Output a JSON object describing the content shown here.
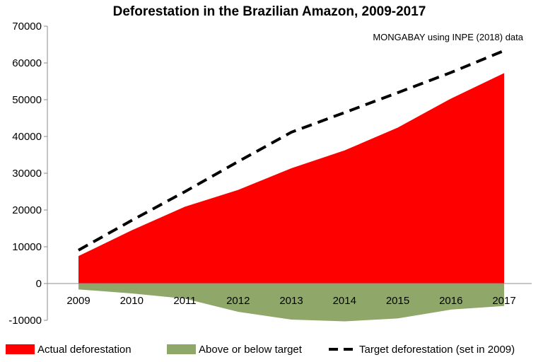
{
  "chart_data": {
    "type": "area",
    "title": "Deforestation in the Brazilian Amazon, 2009-2017",
    "source": "MONGABAY using INPE (2018) data",
    "categories": [
      "2009",
      "2010",
      "2011",
      "2012",
      "2013",
      "2014",
      "2015",
      "2016",
      "2017"
    ],
    "series": [
      {
        "name": "Actual deforestation",
        "kind": "area",
        "color": "#ff0000",
        "values": [
          7464,
          14464,
          20882,
          25453,
          31344,
          36192,
          42399,
          50292,
          57239
        ]
      },
      {
        "name": "Above or below target",
        "kind": "area",
        "color": "#8fa86a",
        "values": [
          -1600,
          -2700,
          -4100,
          -7700,
          -9800,
          -10300,
          -9500,
          -7100,
          -6100
        ]
      },
      {
        "name": "Target deforestation (set in 2009)",
        "kind": "dashed-line",
        "color": "#000000",
        "values": [
          9064,
          17164,
          24982,
          33153,
          41144,
          46492,
          51899,
          57392,
          63339
        ]
      }
    ],
    "yticks": [
      70000,
      60000,
      50000,
      40000,
      30000,
      20000,
      10000,
      0,
      -10000
    ],
    "ylim": [
      -10000,
      70000
    ],
    "grid": false,
    "legend_position": "bottom"
  }
}
